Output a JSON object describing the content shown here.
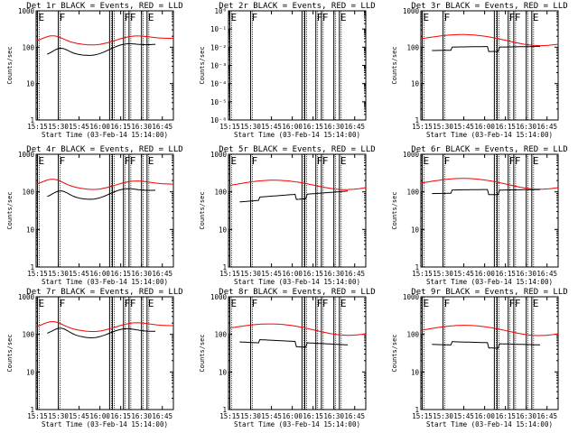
{
  "chart_data": [
    {
      "type": "line",
      "title": "Det 1r BLACK = Events, RED = LLD",
      "xlabel": "Start Time (03-Feb-14 15:14:00)",
      "ylabel": "Counts/sec",
      "xticks": [
        "15:15",
        "15:30",
        "15:45",
        "16:00",
        "16:15",
        "16:30",
        "16:45"
      ],
      "yticks": [
        "1",
        "10",
        "100",
        "1000"
      ],
      "yscale": "log",
      "ylim": [
        1,
        1000
      ],
      "xlim": [
        "15:14",
        "16:53"
      ],
      "series": [
        {
          "color": "#ff0000",
          "shape": "A",
          "x": [
            "15:14",
            "16:53"
          ],
          "y": [
            140,
            175
          ]
        },
        {
          "color": "#000000",
          "shape": "A",
          "x": [
            "15:22",
            "16:40"
          ],
          "y": [
            60,
            120
          ]
        }
      ],
      "markers": [
        {
          "label": "E",
          "x": "15:15"
        },
        {
          "label": "F",
          "x": "15:30"
        },
        {
          "label": "",
          "x": "16:07"
        },
        {
          "label": "",
          "x": "16:09"
        },
        {
          "label": "F",
          "x": "16:17"
        },
        {
          "label": "F",
          "x": "16:21"
        },
        {
          "label": "",
          "x": "16:30"
        },
        {
          "label": "E",
          "x": "16:34"
        }
      ]
    },
    {
      "type": "line",
      "title": "Det 2r BLACK = Events, RED = LLD",
      "xlabel": "Start Time (03-Feb-14 15:14:00)",
      "ylabel": "Counts/sec",
      "xticks": [
        "15:15",
        "15:30",
        "15:45",
        "16:00",
        "16:15",
        "16:30",
        "16:45"
      ],
      "yticks": [
        "10⁻⁶",
        "10⁻⁵",
        "10⁻⁴",
        "10⁻³",
        "10⁻²",
        "10⁻¹",
        "10⁰"
      ],
      "yscale": "log",
      "ylim": [
        1e-06,
        1
      ],
      "xlim": [
        "15:14",
        "16:53"
      ],
      "series": [],
      "markers": [
        {
          "label": "E",
          "x": "15:15"
        },
        {
          "label": "F",
          "x": "15:30"
        },
        {
          "label": "",
          "x": "16:07"
        },
        {
          "label": "",
          "x": "16:09"
        },
        {
          "label": "F",
          "x": "16:17"
        },
        {
          "label": "F",
          "x": "16:21"
        },
        {
          "label": "",
          "x": "16:30"
        },
        {
          "label": "E",
          "x": "16:34"
        }
      ]
    },
    {
      "type": "line",
      "title": "Det 3r BLACK = Events, RED = LLD",
      "xlabel": "Start Time (03-Feb-14 15:14:00)",
      "ylabel": "Counts/sec",
      "xticks": [
        "15:15",
        "15:30",
        "15:45",
        "16:00",
        "16:15",
        "16:30",
        "16:45"
      ],
      "yticks": [
        "1",
        "10",
        "100",
        "1000"
      ],
      "yscale": "log",
      "ylim": [
        1,
        1000
      ],
      "xlim": [
        "15:14",
        "16:53"
      ],
      "series": [
        {
          "color": "#ff0000",
          "shape": "B",
          "x": [
            "15:14",
            "16:53"
          ],
          "y": [
            200,
            140
          ]
        },
        {
          "color": "#000000",
          "shape": "C",
          "x": [
            "15:22",
            "16:40"
          ],
          "y": [
            90,
            100
          ]
        }
      ],
      "markers": [
        {
          "label": "E",
          "x": "15:15"
        },
        {
          "label": "F",
          "x": "15:30"
        },
        {
          "label": "",
          "x": "16:07"
        },
        {
          "label": "",
          "x": "16:09"
        },
        {
          "label": "F",
          "x": "16:17"
        },
        {
          "label": "F",
          "x": "16:21"
        },
        {
          "label": "",
          "x": "16:30"
        },
        {
          "label": "E",
          "x": "16:34"
        }
      ]
    },
    {
      "type": "line",
      "title": "Det 4r BLACK = Events, RED = LLD",
      "xlabel": "Start Time (03-Feb-14 15:14:00)",
      "ylabel": "Counts/sec",
      "xticks": [
        "15:15",
        "15:30",
        "15:45",
        "16:00",
        "16:15",
        "16:30",
        "16:45"
      ],
      "yticks": [
        "1",
        "10",
        "100",
        "1000"
      ],
      "yscale": "log",
      "ylim": [
        1,
        1000
      ],
      "xlim": [
        "15:14",
        "16:53"
      ],
      "series": [
        {
          "color": "#ff0000",
          "shape": "A",
          "x": [
            "15:14",
            "16:53"
          ],
          "y": [
            150,
            160
          ]
        },
        {
          "color": "#000000",
          "shape": "A",
          "x": [
            "15:22",
            "16:40"
          ],
          "y": [
            70,
            110
          ]
        }
      ],
      "markers": [
        {
          "label": "E",
          "x": "15:15"
        },
        {
          "label": "F",
          "x": "15:30"
        },
        {
          "label": "",
          "x": "16:07"
        },
        {
          "label": "",
          "x": "16:09"
        },
        {
          "label": "F",
          "x": "16:17"
        },
        {
          "label": "F",
          "x": "16:21"
        },
        {
          "label": "",
          "x": "16:30"
        },
        {
          "label": "E",
          "x": "16:34"
        }
      ]
    },
    {
      "type": "line",
      "title": "Det 5r BLACK = Events, RED = LLD",
      "xlabel": "Start Time (03-Feb-14 15:14:00)",
      "ylabel": "Counts/sec",
      "xticks": [
        "15:15",
        "15:30",
        "15:45",
        "16:00",
        "16:15",
        "16:30",
        "16:45"
      ],
      "yticks": [
        "1",
        "10",
        "100",
        "1000"
      ],
      "yscale": "log",
      "ylim": [
        1,
        1000
      ],
      "xlim": [
        "15:14",
        "16:53"
      ],
      "series": [
        {
          "color": "#ff0000",
          "shape": "B",
          "x": [
            "15:14",
            "16:53"
          ],
          "y": [
            170,
            150
          ]
        },
        {
          "color": "#000000",
          "shape": "C",
          "x": [
            "15:22",
            "16:40"
          ],
          "y": [
            60,
            100
          ]
        }
      ],
      "markers": [
        {
          "label": "E",
          "x": "15:15"
        },
        {
          "label": "F",
          "x": "15:30"
        },
        {
          "label": "",
          "x": "16:07"
        },
        {
          "label": "",
          "x": "16:09"
        },
        {
          "label": "F",
          "x": "16:17"
        },
        {
          "label": "F",
          "x": "16:21"
        },
        {
          "label": "",
          "x": "16:30"
        },
        {
          "label": "E",
          "x": "16:34"
        }
      ]
    },
    {
      "type": "line",
      "title": "Det 6r BLACK = Events, RED = LLD",
      "xlabel": "Start Time (03-Feb-14 15:14:00)",
      "ylabel": "Counts/sec",
      "xticks": [
        "15:15",
        "15:30",
        "15:45",
        "16:00",
        "16:15",
        "16:30",
        "16:45"
      ],
      "yticks": [
        "1",
        "10",
        "100",
        "1000"
      ],
      "yscale": "log",
      "ylim": [
        1,
        1000
      ],
      "xlim": [
        "15:14",
        "16:53"
      ],
      "series": [
        {
          "color": "#ff0000",
          "shape": "B",
          "x": [
            "15:14",
            "16:53"
          ],
          "y": [
            200,
            150
          ]
        },
        {
          "color": "#000000",
          "shape": "C",
          "x": [
            "15:22",
            "16:40"
          ],
          "y": [
            100,
            110
          ]
        }
      ],
      "markers": [
        {
          "label": "E",
          "x": "15:15"
        },
        {
          "label": "F",
          "x": "15:30"
        },
        {
          "label": "",
          "x": "16:07"
        },
        {
          "label": "",
          "x": "16:09"
        },
        {
          "label": "F",
          "x": "16:17"
        },
        {
          "label": "F",
          "x": "16:21"
        },
        {
          "label": "",
          "x": "16:30"
        },
        {
          "label": "E",
          "x": "16:34"
        }
      ]
    },
    {
      "type": "line",
      "title": "Det 7r BLACK = Events, RED = LLD",
      "xlabel": "Start Time (03-Feb-14 15:14:00)",
      "ylabel": "Counts/sec",
      "xticks": [
        "15:15",
        "15:30",
        "15:45",
        "16:00",
        "16:15",
        "16:30",
        "16:45"
      ],
      "yticks": [
        "1",
        "10",
        "100",
        "1000"
      ],
      "yscale": "log",
      "ylim": [
        1,
        1000
      ],
      "xlim": [
        "15:14",
        "16:53"
      ],
      "series": [
        {
          "color": "#ff0000",
          "shape": "A",
          "x": [
            "15:14",
            "16:53"
          ],
          "y": [
            150,
            170
          ]
        },
        {
          "color": "#000000",
          "shape": "A",
          "x": [
            "15:22",
            "16:40"
          ],
          "y": [
            100,
            120
          ]
        }
      ],
      "markers": [
        {
          "label": "E",
          "x": "15:15"
        },
        {
          "label": "F",
          "x": "15:30"
        },
        {
          "label": "",
          "x": "16:07"
        },
        {
          "label": "",
          "x": "16:09"
        },
        {
          "label": "F",
          "x": "16:17"
        },
        {
          "label": "F",
          "x": "16:21"
        },
        {
          "label": "",
          "x": "16:30"
        },
        {
          "label": "E",
          "x": "16:34"
        }
      ]
    },
    {
      "type": "line",
      "title": "Det 8r BLACK = Events, RED = LLD",
      "xlabel": "Start Time (03-Feb-14 15:14:00)",
      "ylabel": "Counts/sec",
      "xticks": [
        "15:15",
        "15:30",
        "15:45",
        "16:00",
        "16:15",
        "16:30",
        "16:45"
      ],
      "yticks": [
        "1",
        "10",
        "100",
        "1000"
      ],
      "yscale": "log",
      "ylim": [
        1,
        1000
      ],
      "xlim": [
        "15:14",
        "16:53"
      ],
      "series": [
        {
          "color": "#ff0000",
          "shape": "B",
          "x": [
            "15:14",
            "16:53"
          ],
          "y": [
            170,
            120
          ]
        },
        {
          "color": "#000000",
          "shape": "C",
          "x": [
            "15:22",
            "16:40"
          ],
          "y": [
            70,
            50
          ]
        }
      ],
      "markers": [
        {
          "label": "E",
          "x": "15:15"
        },
        {
          "label": "F",
          "x": "15:30"
        },
        {
          "label": "",
          "x": "16:07"
        },
        {
          "label": "",
          "x": "16:09"
        },
        {
          "label": "F",
          "x": "16:17"
        },
        {
          "label": "F",
          "x": "16:21"
        },
        {
          "label": "",
          "x": "16:30"
        },
        {
          "label": "E",
          "x": "16:34"
        }
      ]
    },
    {
      "type": "line",
      "title": "Det 9r BLACK = Events, RED = LLD",
      "xlabel": "Start Time (03-Feb-14 15:14:00)",
      "ylabel": "Counts/sec",
      "xticks": [
        "15:15",
        "15:30",
        "15:45",
        "16:00",
        "16:15",
        "16:30",
        "16:45"
      ],
      "yticks": [
        "1",
        "10",
        "100",
        "1000"
      ],
      "yscale": "log",
      "ylim": [
        1,
        1000
      ],
      "xlim": [
        "15:14",
        "16:53"
      ],
      "series": [
        {
          "color": "#ff0000",
          "shape": "B",
          "x": [
            "15:14",
            "16:53"
          ],
          "y": [
            150,
            120
          ]
        },
        {
          "color": "#000000",
          "shape": "C",
          "x": [
            "15:22",
            "16:40"
          ],
          "y": [
            60,
            50
          ]
        }
      ],
      "markers": [
        {
          "label": "E",
          "x": "15:15"
        },
        {
          "label": "F",
          "x": "15:30"
        },
        {
          "label": "",
          "x": "16:07"
        },
        {
          "label": "",
          "x": "16:09"
        },
        {
          "label": "F",
          "x": "16:17"
        },
        {
          "label": "F",
          "x": "16:21"
        },
        {
          "label": "",
          "x": "16:30"
        },
        {
          "label": "E",
          "x": "16:34"
        }
      ]
    }
  ]
}
